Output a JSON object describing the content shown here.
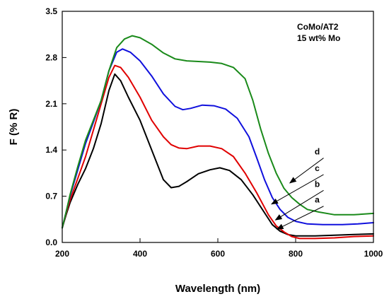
{
  "chart_data": {
    "type": "line",
    "title": "",
    "xlabel": "Wavelength (nm)",
    "ylabel": "F (% R)",
    "xlim": [
      200,
      1000
    ],
    "ylim": [
      0,
      3.5
    ],
    "xticks": [
      "200",
      "400",
      "600",
      "800",
      "1000"
    ],
    "yticks": [
      "0.0",
      "0.7",
      "1.4",
      "2.1",
      "2.8",
      "3.5"
    ],
    "grid": false,
    "annotation": [
      "CoMo/AT2",
      "15 wt% Mo"
    ],
    "series": [
      {
        "name": "a",
        "color": "#000000",
        "points": [
          [
            200,
            0.22
          ],
          [
            210,
            0.42
          ],
          [
            220,
            0.6
          ],
          [
            240,
            0.88
          ],
          [
            260,
            1.12
          ],
          [
            280,
            1.42
          ],
          [
            300,
            1.8
          ],
          [
            320,
            2.3
          ],
          [
            335,
            2.55
          ],
          [
            350,
            2.45
          ],
          [
            370,
            2.2
          ],
          [
            400,
            1.85
          ],
          [
            430,
            1.4
          ],
          [
            460,
            0.95
          ],
          [
            480,
            0.83
          ],
          [
            500,
            0.85
          ],
          [
            520,
            0.92
          ],
          [
            550,
            1.04
          ],
          [
            580,
            1.1
          ],
          [
            605,
            1.13
          ],
          [
            630,
            1.09
          ],
          [
            660,
            0.95
          ],
          [
            690,
            0.72
          ],
          [
            720,
            0.45
          ],
          [
            740,
            0.27
          ],
          [
            760,
            0.17
          ],
          [
            780,
            0.12
          ],
          [
            800,
            0.1
          ],
          [
            850,
            0.1
          ],
          [
            900,
            0.11
          ],
          [
            950,
            0.12
          ],
          [
            1000,
            0.13
          ]
        ]
      },
      {
        "name": "b",
        "color": "#e00000",
        "points": [
          [
            200,
            0.22
          ],
          [
            210,
            0.44
          ],
          [
            220,
            0.64
          ],
          [
            240,
            0.97
          ],
          [
            260,
            1.3
          ],
          [
            280,
            1.7
          ],
          [
            300,
            2.1
          ],
          [
            320,
            2.5
          ],
          [
            335,
            2.68
          ],
          [
            350,
            2.65
          ],
          [
            370,
            2.5
          ],
          [
            400,
            2.2
          ],
          [
            430,
            1.85
          ],
          [
            460,
            1.6
          ],
          [
            480,
            1.48
          ],
          [
            500,
            1.43
          ],
          [
            520,
            1.42
          ],
          [
            550,
            1.46
          ],
          [
            580,
            1.46
          ],
          [
            610,
            1.42
          ],
          [
            640,
            1.3
          ],
          [
            670,
            1.05
          ],
          [
            700,
            0.75
          ],
          [
            730,
            0.42
          ],
          [
            750,
            0.25
          ],
          [
            770,
            0.16
          ],
          [
            790,
            0.09
          ],
          [
            810,
            0.06
          ],
          [
            850,
            0.06
          ],
          [
            900,
            0.07
          ],
          [
            950,
            0.09
          ],
          [
            1000,
            0.1
          ]
        ]
      },
      {
        "name": "c",
        "color": "#1010dd",
        "points": [
          [
            200,
            0.22
          ],
          [
            210,
            0.46
          ],
          [
            220,
            0.7
          ],
          [
            240,
            1.1
          ],
          [
            260,
            1.5
          ],
          [
            280,
            1.82
          ],
          [
            300,
            2.15
          ],
          [
            320,
            2.6
          ],
          [
            340,
            2.88
          ],
          [
            355,
            2.93
          ],
          [
            375,
            2.88
          ],
          [
            400,
            2.75
          ],
          [
            430,
            2.52
          ],
          [
            460,
            2.25
          ],
          [
            490,
            2.06
          ],
          [
            510,
            2.01
          ],
          [
            530,
            2.03
          ],
          [
            560,
            2.08
          ],
          [
            590,
            2.07
          ],
          [
            620,
            2.02
          ],
          [
            650,
            1.88
          ],
          [
            680,
            1.6
          ],
          [
            700,
            1.28
          ],
          [
            720,
            0.95
          ],
          [
            740,
            0.68
          ],
          [
            760,
            0.5
          ],
          [
            780,
            0.38
          ],
          [
            800,
            0.32
          ],
          [
            830,
            0.28
          ],
          [
            870,
            0.27
          ],
          [
            920,
            0.27
          ],
          [
            960,
            0.28
          ],
          [
            1000,
            0.3
          ]
        ]
      },
      {
        "name": "d",
        "color": "#1a8a1a",
        "points": [
          [
            200,
            0.22
          ],
          [
            210,
            0.46
          ],
          [
            220,
            0.72
          ],
          [
            240,
            1.15
          ],
          [
            260,
            1.55
          ],
          [
            280,
            1.85
          ],
          [
            300,
            2.15
          ],
          [
            320,
            2.6
          ],
          [
            340,
            2.95
          ],
          [
            360,
            3.08
          ],
          [
            380,
            3.13
          ],
          [
            400,
            3.1
          ],
          [
            430,
            3.0
          ],
          [
            460,
            2.87
          ],
          [
            490,
            2.78
          ],
          [
            520,
            2.75
          ],
          [
            550,
            2.74
          ],
          [
            580,
            2.73
          ],
          [
            610,
            2.71
          ],
          [
            640,
            2.65
          ],
          [
            670,
            2.48
          ],
          [
            690,
            2.15
          ],
          [
            710,
            1.72
          ],
          [
            730,
            1.35
          ],
          [
            750,
            1.05
          ],
          [
            770,
            0.82
          ],
          [
            790,
            0.68
          ],
          [
            810,
            0.58
          ],
          [
            830,
            0.5
          ],
          [
            860,
            0.46
          ],
          [
            900,
            0.42
          ],
          [
            950,
            0.42
          ],
          [
            1000,
            0.44
          ]
        ]
      }
    ],
    "curve_labels": [
      {
        "label": "d",
        "at": [
          850,
          1.3
        ],
        "arrow_to": [
          785,
          0.9
        ]
      },
      {
        "label": "c",
        "at": [
          850,
          1.05
        ],
        "arrow_to": [
          738,
          0.58
        ]
      },
      {
        "label": "b",
        "at": [
          850,
          0.81
        ],
        "arrow_to": [
          748,
          0.34
        ]
      },
      {
        "label": "a",
        "at": [
          850,
          0.57
        ],
        "arrow_to": [
          752,
          0.2
        ]
      }
    ]
  }
}
